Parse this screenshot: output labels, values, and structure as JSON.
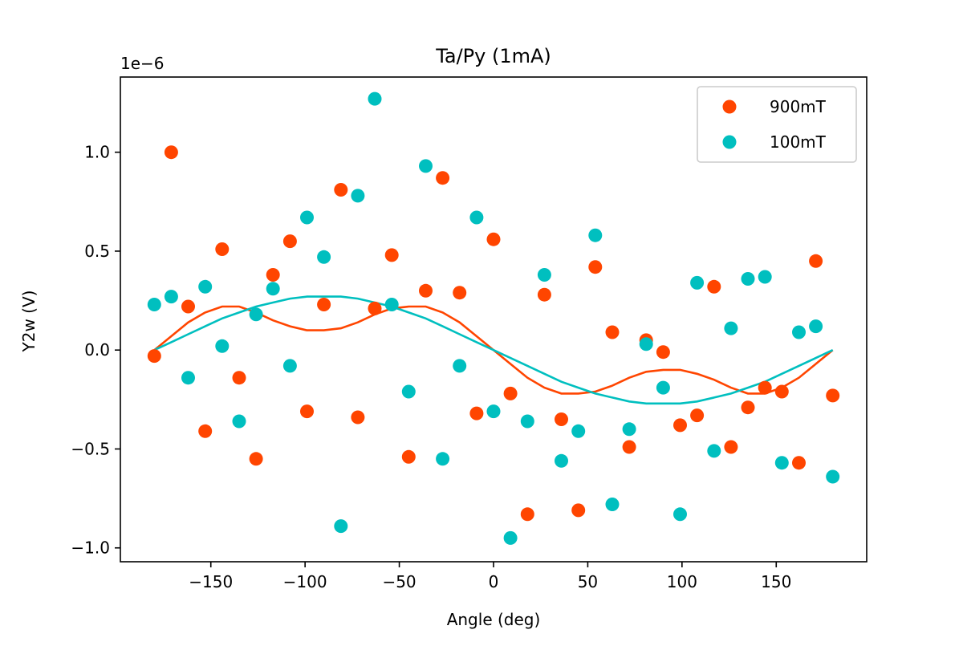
{
  "chart_data": {
    "type": "scatter",
    "title": "Ta/Py (1mA)",
    "xlabel": "Angle (deg)",
    "ylabel": "Y2w (V)",
    "offset_text": "1e−6",
    "xlim": [
      -198,
      198
    ],
    "ylim": [
      -1.07,
      1.38
    ],
    "xticks": [
      -150,
      -100,
      -50,
      0,
      50,
      100,
      150
    ],
    "xtick_labels": [
      "−150",
      "−100",
      "−50",
      "0",
      "50",
      "100",
      "150"
    ],
    "yticks": [
      -1.0,
      -0.5,
      0.0,
      0.5,
      1.0
    ],
    "ytick_labels": [
      "−1.0",
      "−0.5",
      "0.0",
      "0.5",
      "1.0"
    ],
    "grid": false,
    "legend_position": "top-right",
    "series": [
      {
        "name": "900mT",
        "color": "#ff4500",
        "points": [
          [
            -180,
            -0.03
          ],
          [
            -171,
            1.0
          ],
          [
            -162,
            0.22
          ],
          [
            -153,
            -0.41
          ],
          [
            -144,
            0.51
          ],
          [
            -135,
            -0.14
          ],
          [
            -126,
            -0.55
          ],
          [
            -117,
            0.38
          ],
          [
            -108,
            0.55
          ],
          [
            -99,
            -0.31
          ],
          [
            -90,
            0.23
          ],
          [
            -81,
            0.81
          ],
          [
            -72,
            -0.34
          ],
          [
            -63,
            0.21
          ],
          [
            -54,
            0.48
          ],
          [
            -45,
            -0.54
          ],
          [
            -36,
            0.3
          ],
          [
            -27,
            0.87
          ],
          [
            -18,
            0.29
          ],
          [
            -9,
            -0.32
          ],
          [
            0,
            0.56
          ],
          [
            9,
            -0.22
          ],
          [
            18,
            -0.83
          ],
          [
            27,
            0.28
          ],
          [
            36,
            -0.35
          ],
          [
            45,
            -0.81
          ],
          [
            54,
            0.42
          ],
          [
            63,
            0.09
          ],
          [
            72,
            -0.49
          ],
          [
            81,
            0.05
          ],
          [
            90,
            -0.01
          ],
          [
            99,
            -0.38
          ],
          [
            108,
            -0.33
          ],
          [
            117,
            0.32
          ],
          [
            126,
            -0.49
          ],
          [
            135,
            -0.29
          ],
          [
            144,
            -0.19
          ],
          [
            153,
            -0.21
          ],
          [
            162,
            -0.57
          ],
          [
            171,
            0.45
          ],
          [
            180,
            -0.23
          ]
        ],
        "fit_curve": [
          [
            -180,
            0.0
          ],
          [
            -171,
            0.07
          ],
          [
            -162,
            0.14
          ],
          [
            -153,
            0.19
          ],
          [
            -144,
            0.22
          ],
          [
            -135,
            0.22
          ],
          [
            -126,
            0.19
          ],
          [
            -117,
            0.15
          ],
          [
            -108,
            0.12
          ],
          [
            -99,
            0.1
          ],
          [
            -90,
            0.1
          ],
          [
            -81,
            0.11
          ],
          [
            -72,
            0.14
          ],
          [
            -63,
            0.18
          ],
          [
            -54,
            0.21
          ],
          [
            -45,
            0.22
          ],
          [
            -36,
            0.22
          ],
          [
            -27,
            0.19
          ],
          [
            -18,
            0.14
          ],
          [
            -9,
            0.07
          ],
          [
            0,
            0.0
          ],
          [
            9,
            -0.07
          ],
          [
            18,
            -0.14
          ],
          [
            27,
            -0.19
          ],
          [
            36,
            -0.22
          ],
          [
            45,
            -0.22
          ],
          [
            54,
            -0.21
          ],
          [
            63,
            -0.18
          ],
          [
            72,
            -0.14
          ],
          [
            81,
            -0.11
          ],
          [
            90,
            -0.1
          ],
          [
            99,
            -0.1
          ],
          [
            108,
            -0.12
          ],
          [
            117,
            -0.15
          ],
          [
            126,
            -0.19
          ],
          [
            135,
            -0.22
          ],
          [
            144,
            -0.22
          ],
          [
            153,
            -0.19
          ],
          [
            162,
            -0.14
          ],
          [
            171,
            -0.07
          ],
          [
            180,
            0.0
          ]
        ]
      },
      {
        "name": "100mT",
        "color": "#00bfbf",
        "points": [
          [
            -180,
            0.23
          ],
          [
            -171,
            0.27
          ],
          [
            -162,
            -0.14
          ],
          [
            -153,
            0.32
          ],
          [
            -144,
            0.02
          ],
          [
            -135,
            -0.36
          ],
          [
            -126,
            0.18
          ],
          [
            -117,
            0.31
          ],
          [
            -108,
            -0.08
          ],
          [
            -99,
            0.67
          ],
          [
            -90,
            0.47
          ],
          [
            -81,
            -0.89
          ],
          [
            -72,
            0.78
          ],
          [
            -63,
            1.27
          ],
          [
            -54,
            0.23
          ],
          [
            -45,
            -0.21
          ],
          [
            -36,
            0.93
          ],
          [
            -27,
            -0.55
          ],
          [
            -18,
            -0.08
          ],
          [
            -9,
            0.67
          ],
          [
            0,
            -0.31
          ],
          [
            9,
            -0.95
          ],
          [
            18,
            -0.36
          ],
          [
            27,
            0.38
          ],
          [
            36,
            -0.56
          ],
          [
            45,
            -0.41
          ],
          [
            54,
            0.58
          ],
          [
            63,
            -0.78
          ],
          [
            72,
            -0.4
          ],
          [
            81,
            0.03
          ],
          [
            90,
            -0.19
          ],
          [
            99,
            -0.83
          ],
          [
            108,
            0.34
          ],
          [
            117,
            -0.51
          ],
          [
            126,
            0.11
          ],
          [
            135,
            0.36
          ],
          [
            144,
            0.37
          ],
          [
            153,
            -0.57
          ],
          [
            162,
            0.09
          ],
          [
            171,
            0.12
          ],
          [
            180,
            -0.64
          ]
        ],
        "fit_curve": [
          [
            -180,
            0.0
          ],
          [
            -171,
            0.04
          ],
          [
            -162,
            0.08
          ],
          [
            -153,
            0.12
          ],
          [
            -144,
            0.16
          ],
          [
            -135,
            0.19
          ],
          [
            -126,
            0.22
          ],
          [
            -117,
            0.24
          ],
          [
            -108,
            0.26
          ],
          [
            -99,
            0.27
          ],
          [
            -90,
            0.27
          ],
          [
            -81,
            0.27
          ],
          [
            -72,
            0.26
          ],
          [
            -63,
            0.24
          ],
          [
            -54,
            0.22
          ],
          [
            -45,
            0.19
          ],
          [
            -36,
            0.16
          ],
          [
            -27,
            0.12
          ],
          [
            -18,
            0.08
          ],
          [
            -9,
            0.04
          ],
          [
            0,
            0.0
          ],
          [
            9,
            -0.04
          ],
          [
            18,
            -0.08
          ],
          [
            27,
            -0.12
          ],
          [
            36,
            -0.16
          ],
          [
            45,
            -0.19
          ],
          [
            54,
            -0.22
          ],
          [
            63,
            -0.24
          ],
          [
            72,
            -0.26
          ],
          [
            81,
            -0.27
          ],
          [
            90,
            -0.27
          ],
          [
            99,
            -0.27
          ],
          [
            108,
            -0.26
          ],
          [
            117,
            -0.24
          ],
          [
            126,
            -0.22
          ],
          [
            135,
            -0.19
          ],
          [
            144,
            -0.16
          ],
          [
            153,
            -0.12
          ],
          [
            162,
            -0.08
          ],
          [
            171,
            -0.04
          ],
          [
            180,
            0.0
          ]
        ]
      }
    ]
  }
}
